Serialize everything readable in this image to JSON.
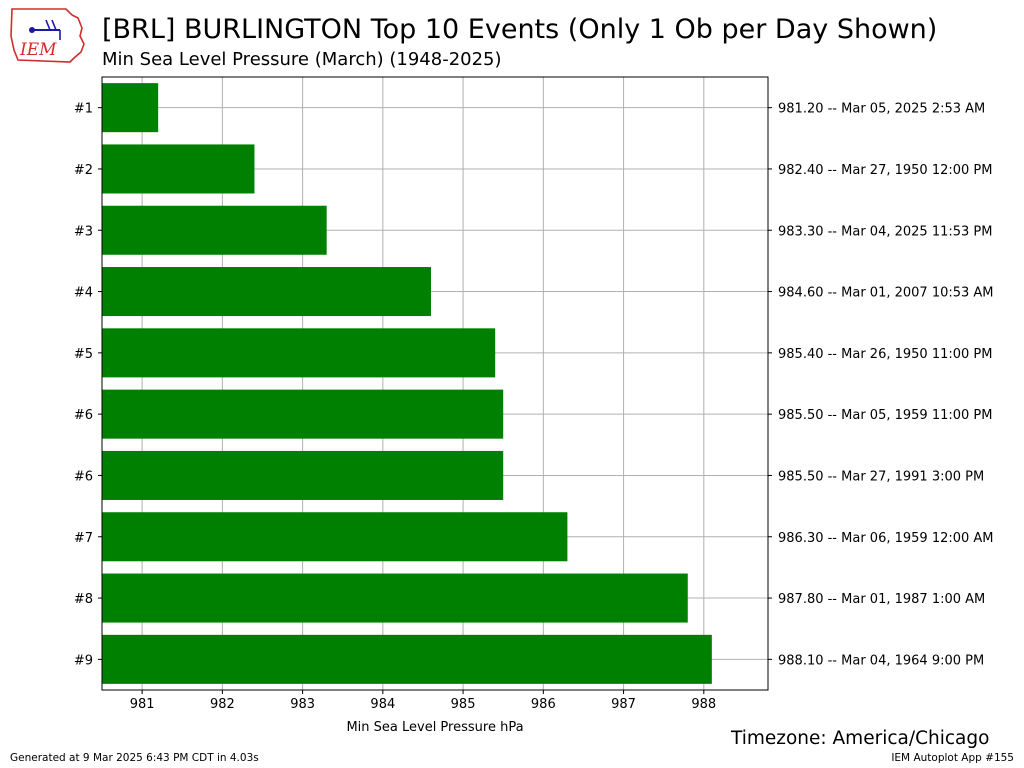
{
  "header": {
    "title": "[BRL] BURLINGTON Top 10 Events (Only 1 Ob per Day Shown)",
    "subtitle": "Min Sea Level Pressure  (March) (1948-2025)",
    "logo_text": "IEM"
  },
  "timezone": "Timezone: America/Chicago",
  "footer": {
    "left": "Generated at 9 Mar 2025 6:43 PM CDT in 4.03s",
    "right": "IEM Autoplot App #155"
  },
  "colors": {
    "bar": "#008000",
    "grid": "#b0b0b0",
    "logo": "#d42b2b"
  },
  "chart_data": {
    "type": "bar",
    "orientation": "horizontal",
    "xlabel": "Min Sea Level Pressure hPa",
    "xlim": [
      980.5,
      988.8
    ],
    "xticks": [
      981,
      982,
      983,
      984,
      985,
      986,
      987,
      988
    ],
    "grid": true,
    "categories": [
      "#1",
      "#2",
      "#3",
      "#4",
      "#5",
      "#6",
      "#6",
      "#7",
      "#8",
      "#9"
    ],
    "values": [
      981.2,
      982.4,
      983.3,
      984.6,
      985.4,
      985.5,
      985.5,
      986.3,
      987.8,
      988.1
    ],
    "right_labels": [
      "981.20 -- Mar 05, 2025 2:53 AM",
      "982.40 -- Mar 27, 1950 12:00 PM",
      "983.30 -- Mar 04, 2025 11:53 PM",
      "984.60 -- Mar 01, 2007 10:53 AM",
      "985.40 -- Mar 26, 1950 11:00 PM",
      "985.50 -- Mar 05, 1959 11:00 PM",
      "985.50 -- Mar 27, 1991 3:00 PM",
      "986.30 -- Mar 06, 1959 12:00 AM",
      "987.80 -- Mar 01, 1987 1:00 AM",
      "988.10 -- Mar 04, 1964 9:00 PM"
    ]
  }
}
